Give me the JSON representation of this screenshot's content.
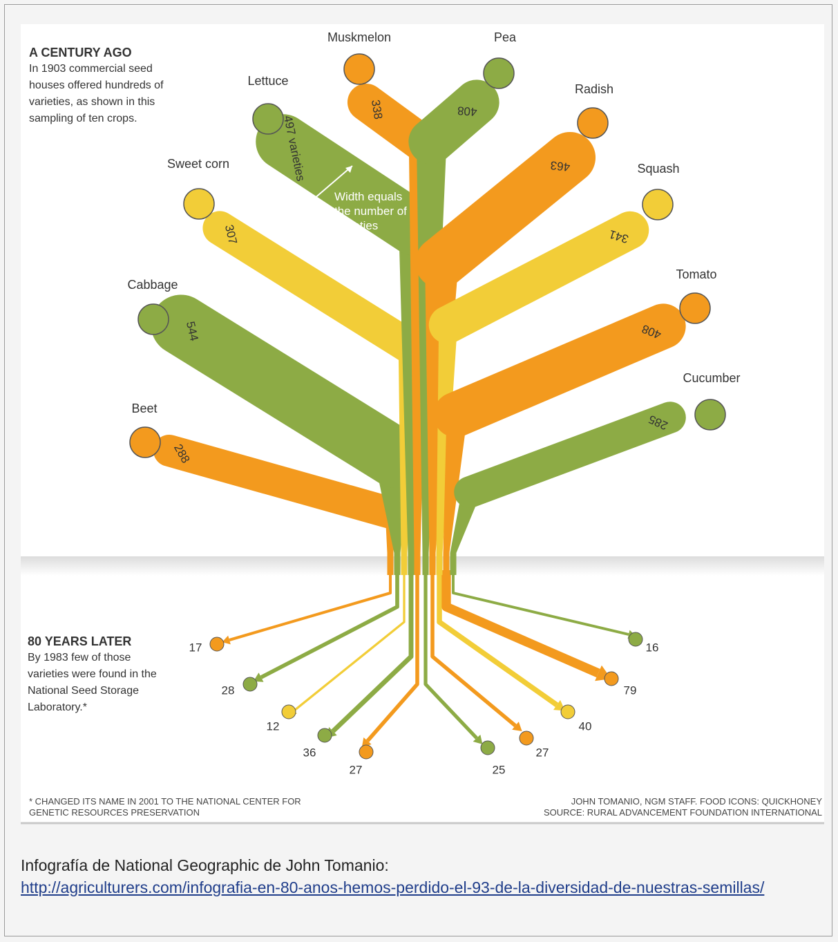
{
  "chart_data": {
    "type": "tree",
    "title": "A CENTURY AGO",
    "subtitle": "In 1903 commercial seed houses offered hundreds of varieties, as shown in this sampling of ten crops.",
    "categories": [
      "Beet",
      "Cabbage",
      "Sweet corn",
      "Lettuce",
      "Muskmelon",
      "Pea",
      "Radish",
      "Squash",
      "Tomato",
      "Cucumber"
    ],
    "colors": [
      "#f39a1e",
      "#8dab45",
      "#f2cd38",
      "#8dab45",
      "#f39a1e",
      "#8dab45",
      "#f39a1e",
      "#f2cd38",
      "#f39a1e",
      "#8dab45"
    ],
    "series": [
      {
        "values": [
          288,
          544,
          307,
          497,
          338,
          408,
          463,
          341,
          408,
          285
        ],
        "value_labels": [
          "288",
          "544",
          "307",
          "497 varieties",
          "338",
          "408",
          "463",
          "341",
          "408",
          "285"
        ]
      },
      {
        "values": [
          17,
          28,
          12,
          36,
          27,
          25,
          27,
          40,
          79,
          16
        ]
      }
    ],
    "width_note": "Width equals the number of varieties",
    "later_title": "80 YEARS LATER",
    "later_text": "By 1983 few of those varieties were found in the National Seed Storage Laboratory.*",
    "footnote": "* CHANGED ITS NAME IN 2001 TO THE NATIONAL CENTER FOR GENETIC RESOURCES PRESERVATION",
    "credit": "JOHN TOMANIO, NGM STAFF. FOOD ICONS: QUICKHONEY",
    "source": "SOURCE: RURAL ADVANCEMENT FOUNDATION INTERNATIONAL"
  },
  "caption": {
    "text": "Infografía de National Geographic de John Tomanio:",
    "link": "http://agriculturers.com/infografia-en-80-anos-hemos-perdido-el-93-de-la-diversidad-de-nuestras-semillas/"
  }
}
